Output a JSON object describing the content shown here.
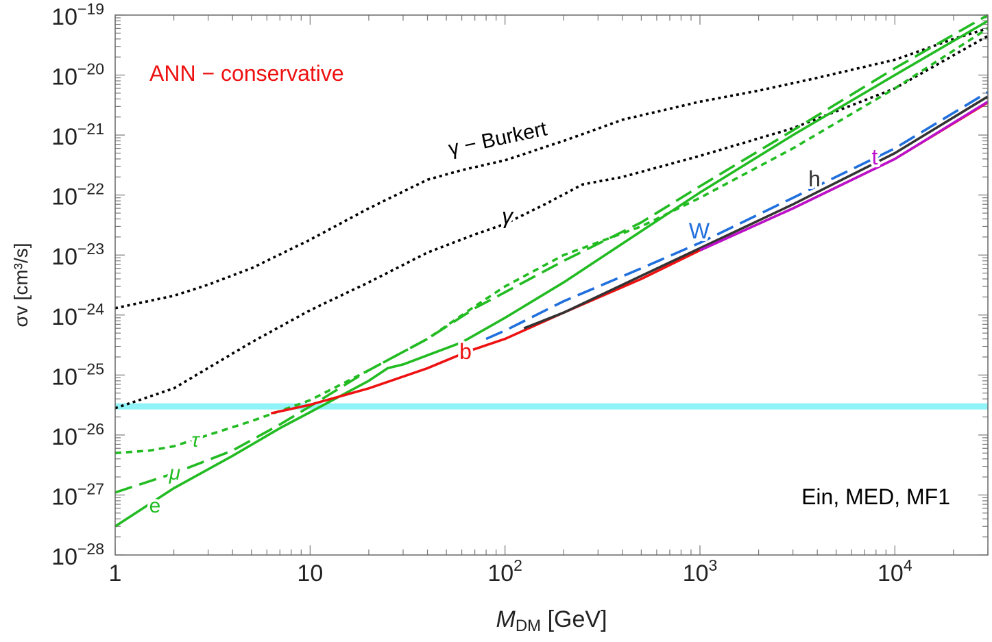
{
  "chart_data": {
    "type": "line",
    "xscale": "log",
    "yscale": "log",
    "xlim": [
      1,
      30000
    ],
    "ylim": [
      1e-28,
      1e-19
    ],
    "grid": false,
    "xlabel_main": "M",
    "xlabel_sub": "DM",
    "xlabel_rest": " [GeV]",
    "ylabel": "σv [cm³/s]",
    "x_ticks": [
      {
        "value": 1,
        "base": "1",
        "exp": ""
      },
      {
        "value": 10,
        "base": "10",
        "exp": ""
      },
      {
        "value": 100,
        "base": "10",
        "exp": "2"
      },
      {
        "value": 1000,
        "base": "10",
        "exp": "3"
      },
      {
        "value": 10000,
        "base": "10",
        "exp": "4"
      }
    ],
    "y_ticks": [
      {
        "value": 1e-28,
        "base": "10",
        "exp": "−28"
      },
      {
        "value": 1e-27,
        "base": "10",
        "exp": "−27"
      },
      {
        "value": 1e-26,
        "base": "10",
        "exp": "−26"
      },
      {
        "value": 1e-25,
        "base": "10",
        "exp": "−25"
      },
      {
        "value": 1e-24,
        "base": "10",
        "exp": "−24"
      },
      {
        "value": 1e-23,
        "base": "10",
        "exp": "−23"
      },
      {
        "value": 1e-22,
        "base": "10",
        "exp": "−22"
      },
      {
        "value": 1e-21,
        "base": "10",
        "exp": "−21"
      },
      {
        "value": 1e-20,
        "base": "10",
        "exp": "−20"
      },
      {
        "value": 1e-19,
        "base": "10",
        "exp": "−19"
      }
    ],
    "annotations": [
      {
        "text": "ANN − conservative",
        "color": "#ee1111"
      },
      {
        "text": "Ein, MED, MF1",
        "color": "#000000"
      }
    ],
    "reference_line": {
      "y": 3e-26,
      "color": "#8ff3f7"
    },
    "series": [
      {
        "name": "γ − Burkert",
        "color": "#000000",
        "dash": "dotted",
        "points": [
          [
            1,
            1.3e-24
          ],
          [
            2,
            2.1e-24
          ],
          [
            3,
            3.2e-24
          ],
          [
            5,
            6e-24
          ],
          [
            10,
            1.8e-23
          ],
          [
            20,
            6e-23
          ],
          [
            40,
            1.8e-22
          ],
          [
            60,
            2.6e-22
          ],
          [
            100,
            3.8e-22
          ],
          [
            200,
            8e-22
          ],
          [
            400,
            1.8e-21
          ],
          [
            1000,
            3.6e-21
          ],
          [
            2000,
            5.5e-21
          ],
          [
            4000,
            9e-21
          ],
          [
            10000,
            1.8e-20
          ],
          [
            20000,
            4e-20
          ],
          [
            30000,
            6e-20
          ]
        ]
      },
      {
        "name": "γ",
        "color": "#000000",
        "dash": "dotted",
        "points": [
          [
            1,
            2.8e-26
          ],
          [
            2,
            6e-26
          ],
          [
            5,
            3.5e-25
          ],
          [
            10,
            1.2e-24
          ],
          [
            20,
            3.5e-24
          ],
          [
            40,
            1.1e-23
          ],
          [
            70,
            2.2e-23
          ],
          [
            100,
            3.3e-23
          ],
          [
            160,
            7e-23
          ],
          [
            250,
            1.5e-22
          ],
          [
            400,
            2e-22
          ],
          [
            1000,
            4.5e-22
          ],
          [
            3000,
            1.3e-21
          ],
          [
            10000,
            6e-21
          ],
          [
            30000,
            4.5e-20
          ]
        ]
      },
      {
        "name": "e",
        "color": "#22bb22",
        "dash": "solid",
        "points": [
          [
            1,
            3e-28
          ],
          [
            2,
            1.3e-27
          ],
          [
            4,
            4.5e-27
          ],
          [
            7,
            1.3e-26
          ],
          [
            10,
            2.4e-26
          ],
          [
            20,
            8e-26
          ],
          [
            25,
            1.3e-25
          ],
          [
            30,
            1.5e-25
          ],
          [
            60,
            3.5e-25
          ],
          [
            100,
            9e-25
          ],
          [
            200,
            3.5e-24
          ],
          [
            500,
            2.5e-23
          ],
          [
            1000,
            1.1e-22
          ],
          [
            3000,
            1e-21
          ],
          [
            10000,
            1e-20
          ],
          [
            30000,
            8e-20
          ]
        ]
      },
      {
        "name": "μ",
        "color": "#22bb22",
        "dash": "long-dash",
        "points": [
          [
            1,
            1.1e-27
          ],
          [
            2,
            2.3e-27
          ],
          [
            4,
            5.5e-27
          ],
          [
            7,
            1.5e-26
          ],
          [
            10,
            3e-26
          ],
          [
            20,
            1.2e-25
          ],
          [
            40,
            4e-25
          ],
          [
            70,
            1.3e-24
          ],
          [
            100,
            2.4e-24
          ],
          [
            200,
            8e-24
          ],
          [
            500,
            3.5e-23
          ],
          [
            1000,
            1.4e-22
          ],
          [
            3000,
            1.2e-21
          ],
          [
            10000,
            1.3e-20
          ],
          [
            30000,
            1e-19
          ]
        ]
      },
      {
        "name": "τ",
        "color": "#22bb22",
        "dash": "short-dash",
        "points": [
          [
            1,
            5e-27
          ],
          [
            1.5,
            5.5e-27
          ],
          [
            2,
            6.5e-27
          ],
          [
            3,
            1e-26
          ],
          [
            5,
            1.7e-26
          ],
          [
            10,
            3.8e-26
          ],
          [
            20,
            1.2e-25
          ],
          [
            40,
            4e-25
          ],
          [
            70,
            1.4e-24
          ],
          [
            100,
            3e-24
          ],
          [
            200,
            1e-23
          ],
          [
            500,
            3e-23
          ],
          [
            1000,
            9e-23
          ],
          [
            3000,
            6e-22
          ],
          [
            10000,
            6e-21
          ],
          [
            30000,
            6e-20
          ]
        ]
      },
      {
        "name": "b",
        "color": "#ee1111",
        "dash": "solid",
        "points": [
          [
            6.3,
            2.3e-26
          ],
          [
            10,
            3.2e-26
          ],
          [
            20,
            6e-26
          ],
          [
            40,
            1.3e-25
          ],
          [
            65,
            2.5e-25
          ],
          [
            100,
            4e-25
          ],
          [
            200,
            1.1e-24
          ],
          [
            500,
            4e-24
          ],
          [
            1000,
            1.2e-23
          ],
          [
            3000,
            6e-23
          ],
          [
            10000,
            4e-22
          ],
          [
            30000,
            3.5e-21
          ]
        ]
      },
      {
        "name": "W",
        "color": "#1f6fdd",
        "dash": "long-dash",
        "points": [
          [
            80,
            4e-25
          ],
          [
            100,
            5.5e-25
          ],
          [
            200,
            1.7e-24
          ],
          [
            500,
            6e-24
          ],
          [
            1000,
            1.6e-23
          ],
          [
            3000,
            9e-23
          ],
          [
            10000,
            6e-22
          ],
          [
            30000,
            5.2e-21
          ]
        ]
      },
      {
        "name": "h",
        "color": "#333333",
        "dash": "solid",
        "points": [
          [
            125,
            6e-25
          ],
          [
            200,
            1.1e-24
          ],
          [
            500,
            4.5e-24
          ],
          [
            1000,
            1.3e-23
          ],
          [
            3000,
            7e-23
          ],
          [
            10000,
            5e-22
          ],
          [
            30000,
            4.4e-21
          ]
        ]
      },
      {
        "name": "t",
        "color": "#bb11cc",
        "dash": "solid",
        "points": [
          [
            1000,
            1.2e-23
          ],
          [
            3000,
            6e-23
          ],
          [
            10000,
            4e-22
          ],
          [
            30000,
            3.6e-21
          ]
        ]
      }
    ],
    "curve_labels": [
      {
        "text": "γ − Burkert",
        "color": "#000000"
      },
      {
        "text": "γ",
        "color": "#000000"
      },
      {
        "text": "τ",
        "color": "#22bb22"
      },
      {
        "text": "μ",
        "color": "#22bb22"
      },
      {
        "text": "e",
        "color": "#22bb22"
      },
      {
        "text": "b",
        "color": "#ee1111"
      },
      {
        "text": "W",
        "color": "#1f6fdd"
      },
      {
        "text": "h",
        "color": "#333333"
      },
      {
        "text": "t",
        "color": "#bb11cc"
      }
    ]
  }
}
